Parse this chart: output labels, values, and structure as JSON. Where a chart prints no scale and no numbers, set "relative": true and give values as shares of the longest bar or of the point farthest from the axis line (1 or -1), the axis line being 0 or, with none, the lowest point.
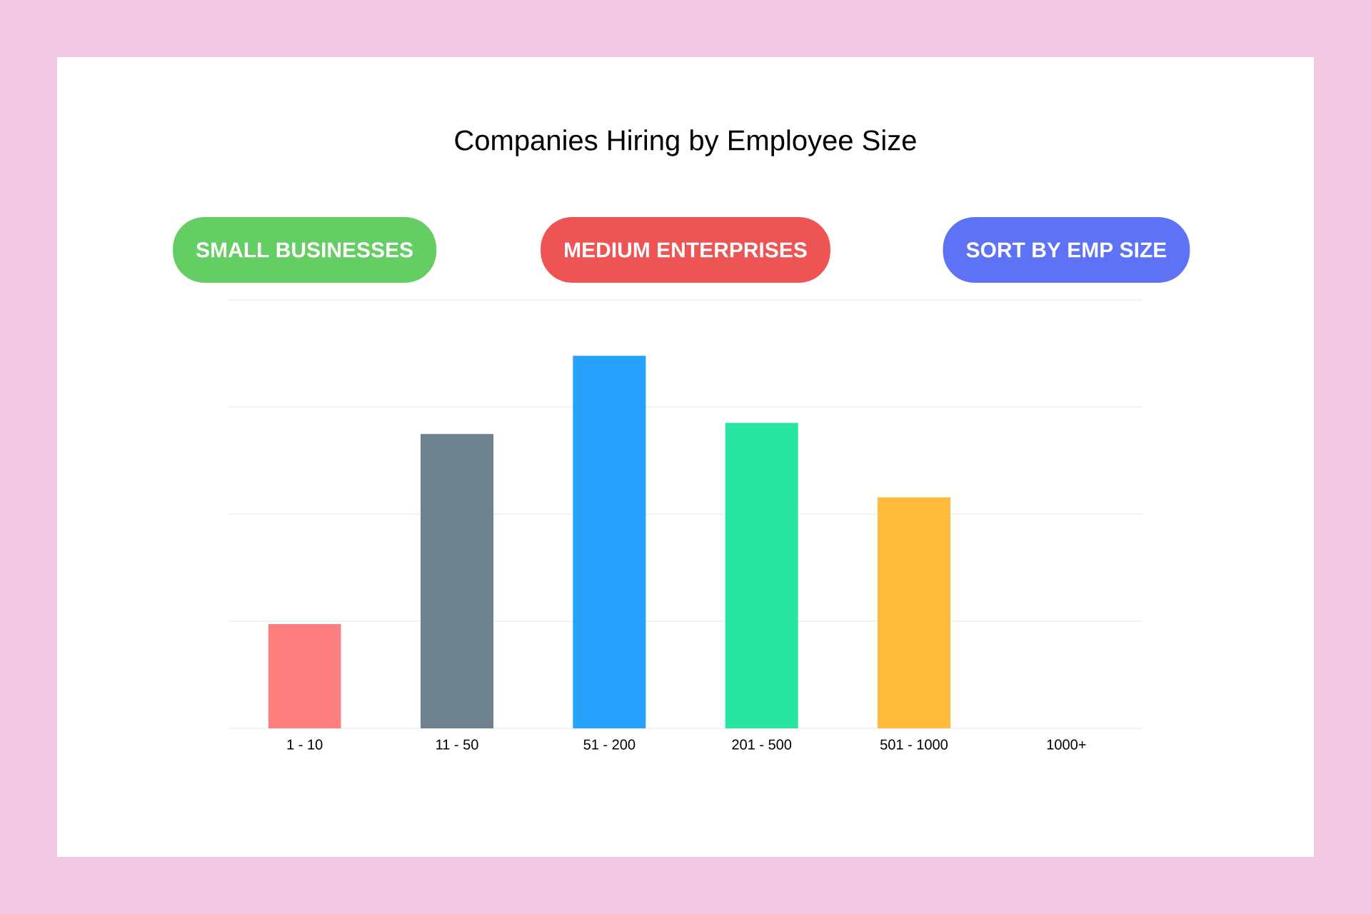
{
  "chart_data": {
    "type": "bar",
    "title": "Companies Hiring by Employee Size",
    "categories": [
      "1 - 10",
      "11 - 50",
      "51 - 200",
      "201 - 500",
      "501 - 1000",
      "1000+"
    ],
    "values": [
      0.28,
      0.79,
      1,
      0.82,
      0.62,
      null
    ],
    "colors": [
      "#fe7f7f",
      "#6e818e",
      "#27a1fe",
      "#27e6a2",
      "#feba3b",
      "#f8b0b2"
    ],
    "relative": true,
    "grid": "y",
    "annotations": [
      "SMALL BUSINESSES",
      "MEDIUM ENTERPRISES",
      "SORT BY EMP SIZE"
    ]
  }
}
